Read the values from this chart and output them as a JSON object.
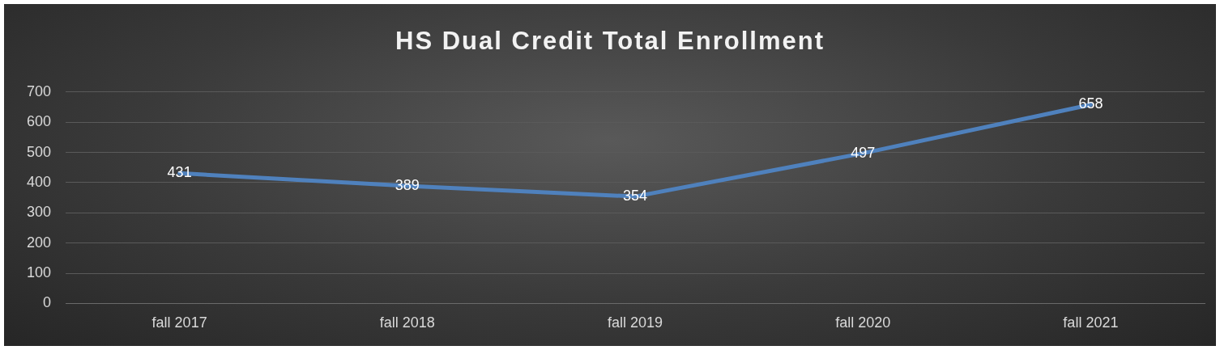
{
  "chart_data": {
    "type": "line",
    "title": "HS Dual Credit Total Enrollment",
    "categories": [
      "fall 2017",
      "fall 2018",
      "fall 2019",
      "fall 2020",
      "fall 2021"
    ],
    "series": [
      {
        "color": "#4f81bd",
        "values": [
          431,
          389,
          354,
          497,
          658
        ]
      }
    ],
    "ylim": [
      0,
      700
    ],
    "yticks": [
      0,
      100,
      200,
      300,
      400,
      500,
      600,
      700
    ],
    "grid": "y",
    "legend": false,
    "marker": "none",
    "line_style": "solid",
    "data_labels": true
  }
}
